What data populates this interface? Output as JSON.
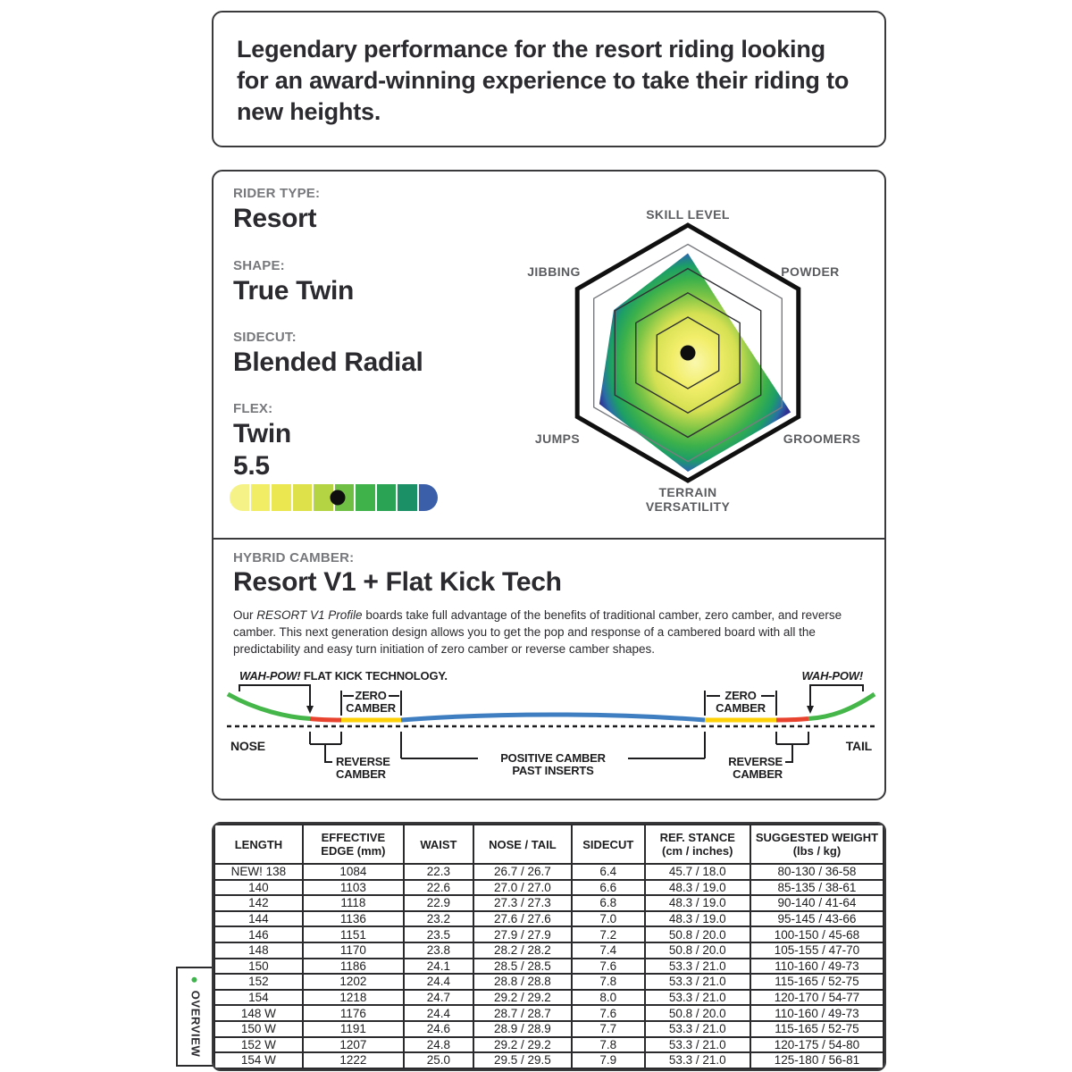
{
  "colors": {
    "text_dark": "#2b2a2e",
    "label_gray": "#77787b",
    "radar_label_gray": "#5b5c5f",
    "overview_dot_green": "#3db54a",
    "camber_green": "#45b649",
    "camber_red": "#e8432e",
    "camber_yellow": "#fdd106",
    "camber_blue": "#3f7fc1"
  },
  "intro": {
    "text": "Legendary performance for the resort riding looking for an award-winning experience to take their riding to new heights."
  },
  "profile": {
    "rider_type_label": "RIDER TYPE:",
    "rider_type_value": "Resort",
    "shape_label": "SHAPE:",
    "shape_value": "True Twin",
    "sidecut_label": "SIDECUT:",
    "sidecut_value": "Blended Radial",
    "flex_label": "FLEX:",
    "flex_name": "Twin",
    "flex_value": "5.5",
    "flex_bar": {
      "scale_max": 10,
      "dot_position_pct": 52,
      "segments": [
        "#f5f388",
        "#f1ee66",
        "#ebe751",
        "#dfe14b",
        "#b4d443",
        "#6fbf44",
        "#3fb249",
        "#2aa355",
        "#1b9066",
        "#3b5fa8"
      ]
    }
  },
  "chart_data": {
    "type": "radar",
    "title": "",
    "axes": [
      "SKILL LEVEL",
      "POWDER",
      "GROOMERS",
      "TERRAIN VERSATILITY",
      "JUMPS",
      "JIBBING"
    ],
    "values": [
      7.8,
      4.2,
      9.3,
      9.3,
      8.0,
      6.7
    ],
    "scale_max": 10,
    "legend": "none",
    "rings": [
      {
        "f": 0.85,
        "color": "#7a7b7f"
      },
      {
        "f": 0.66,
        "color": "#2f3033"
      },
      {
        "f": 0.47,
        "color": "#2f3033"
      },
      {
        "f": 0.28,
        "color": "#2f3033"
      }
    ],
    "gradient": [
      {
        "offset": 0,
        "color": "#faf7ad"
      },
      {
        "offset": 0.22,
        "color": "#f2ee6a"
      },
      {
        "offset": 0.42,
        "color": "#d5e052"
      },
      {
        "offset": 0.58,
        "color": "#7cc446"
      },
      {
        "offset": 0.72,
        "color": "#3cb14b"
      },
      {
        "offset": 0.84,
        "color": "#1c9e66"
      },
      {
        "offset": 0.93,
        "color": "#2a6ea6"
      },
      {
        "offset": 1,
        "color": "#2e3192"
      }
    ]
  },
  "camber": {
    "section_label": "HYBRID CAMBER:",
    "title": "Resort V1 + Flat Kick Tech",
    "desc_prefix": "Our ",
    "desc_italic": "RESORT V1 Profile",
    "desc_rest": " boards take full advantage of the benefits of traditional camber, zero camber, and reverse camber. This next generation design allows you to get the pop and response of a cambered board with all the predictability and easy turn initiation of zero camber or reverse camber shapes.",
    "diagram": {
      "flat_kick_prefix": "WAH-POW!",
      "flat_kick_rest": " FLAT KICK TECHNOLOGY.",
      "wah_pow": "WAH-POW!",
      "zero_line1": "ZERO",
      "zero_line2": "CAMBER",
      "nose": "NOSE",
      "tail": "TAIL",
      "reverse_line1": "REVERSE",
      "reverse_line2": "CAMBER",
      "positive_line1": "POSITIVE CAMBER",
      "positive_line2": "PAST INSERTS"
    }
  },
  "table": {
    "headers": [
      "LENGTH",
      "EFFECTIVE\nEDGE (mm)",
      "WAIST",
      "NOSE / TAIL",
      "SIDECUT",
      "REF. STANCE\n(cm / inches)",
      "SUGGESTED WEIGHT\n(lbs / kg)"
    ],
    "rows": [
      [
        "NEW! 138",
        "1084",
        "22.3",
        "26.7 / 26.7",
        "6.4",
        "45.7 / 18.0",
        "80-130 / 36-58"
      ],
      [
        "140",
        "1103",
        "22.6",
        "27.0 / 27.0",
        "6.6",
        "48.3 / 19.0",
        "85-135 / 38-61"
      ],
      [
        "142",
        "1118",
        "22.9",
        "27.3 / 27.3",
        "6.8",
        "48.3 / 19.0",
        "90-140 / 41-64"
      ],
      [
        "144",
        "1136",
        "23.2",
        "27.6 / 27.6",
        "7.0",
        "48.3 / 19.0",
        "95-145 / 43-66"
      ],
      [
        "146",
        "1151",
        "23.5",
        "27.9 / 27.9",
        "7.2",
        "50.8 / 20.0",
        "100-150 / 45-68"
      ],
      [
        "148",
        "1170",
        "23.8",
        "28.2 / 28.2",
        "7.4",
        "50.8 / 20.0",
        "105-155 / 47-70"
      ],
      [
        "150",
        "1186",
        "24.1",
        "28.5 / 28.5",
        "7.6",
        "53.3 / 21.0",
        "110-160 / 49-73"
      ],
      [
        "152",
        "1202",
        "24.4",
        "28.8 / 28.8",
        "7.8",
        "53.3 / 21.0",
        "115-165 / 52-75"
      ],
      [
        "154",
        "1218",
        "24.7",
        "29.2 / 29.2",
        "8.0",
        "53.3 / 21.0",
        "120-170 / 54-77"
      ],
      [
        "148 W",
        "1176",
        "24.4",
        "28.7 / 28.7",
        "7.6",
        "50.8 / 20.0",
        "110-160 / 49-73"
      ],
      [
        "150 W",
        "1191",
        "24.6",
        "28.9 / 28.9",
        "7.7",
        "53.3 / 21.0",
        "115-165 / 52-75"
      ],
      [
        "152 W",
        "1207",
        "24.8",
        "29.2 / 29.2",
        "7.8",
        "53.3 / 21.0",
        "120-175 / 54-80"
      ],
      [
        "154 W",
        "1222",
        "25.0",
        "29.5 / 29.5",
        "7.9",
        "53.3 / 21.0",
        "125-180 / 56-81"
      ]
    ]
  },
  "overview_tab": {
    "bullet": "●",
    "label": "OVERVIEW"
  }
}
